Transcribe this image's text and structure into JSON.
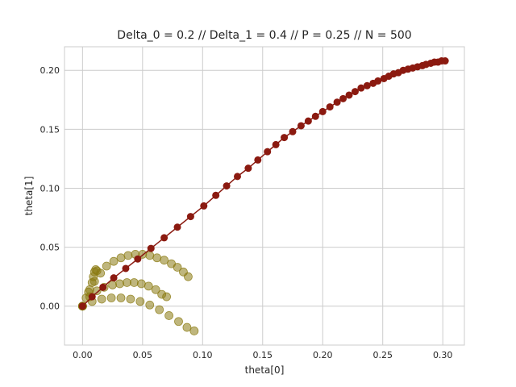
{
  "chart_data": {
    "type": "scatter",
    "title": "Delta_0 = 0.2 // Delta_1 = 0.4 // P = 0.25 // N = 500",
    "xlabel": "theta[0]",
    "ylabel": "theta[1]",
    "xlim": [
      -0.015,
      0.318
    ],
    "ylim": [
      -0.033,
      0.22
    ],
    "xticks": [
      "0.00",
      "0.05",
      "0.10",
      "0.15",
      "0.20",
      "0.25",
      "0.30"
    ],
    "xtick_values": [
      0.0,
      0.05,
      0.1,
      0.15,
      0.2,
      0.25,
      0.3
    ],
    "yticks": [
      "0.00",
      "0.05",
      "0.10",
      "0.15",
      "0.20"
    ],
    "ytick_values": [
      0.0,
      0.05,
      0.1,
      0.15,
      0.2
    ],
    "grid": true,
    "colors": {
      "main": "#8b1a10",
      "trajectories": "#8b7a12"
    },
    "series": [
      {
        "style": "line-markers",
        "color": "#8b1a10",
        "x": [
          0.0,
          0.008,
          0.017,
          0.026,
          0.036,
          0.046,
          0.057,
          0.068,
          0.079,
          0.09,
          0.101,
          0.111,
          0.12,
          0.129,
          0.138,
          0.146,
          0.154,
          0.161,
          0.168,
          0.175,
          0.182,
          0.188,
          0.194,
          0.2,
          0.206,
          0.212,
          0.217,
          0.222,
          0.227,
          0.232,
          0.237,
          0.242,
          0.246,
          0.251,
          0.255,
          0.259,
          0.263,
          0.267,
          0.271,
          0.275,
          0.279,
          0.283,
          0.286,
          0.29,
          0.293,
          0.296,
          0.299,
          0.302
        ],
        "y": [
          0.0,
          0.008,
          0.016,
          0.024,
          0.032,
          0.04,
          0.049,
          0.058,
          0.067,
          0.076,
          0.085,
          0.094,
          0.102,
          0.11,
          0.117,
          0.124,
          0.131,
          0.137,
          0.143,
          0.148,
          0.153,
          0.157,
          0.161,
          0.165,
          0.169,
          0.173,
          0.176,
          0.179,
          0.182,
          0.185,
          0.187,
          0.189,
          0.191,
          0.193,
          0.195,
          0.197,
          0.198,
          0.2,
          0.201,
          0.202,
          0.203,
          0.204,
          0.205,
          0.206,
          0.207,
          0.207,
          0.208,
          0.208
        ]
      },
      {
        "style": "markers",
        "color": "#8b7a12",
        "x": [
          0.0,
          0.005,
          0.01,
          0.015,
          0.02,
          0.026,
          0.032,
          0.038,
          0.044,
          0.05,
          0.056,
          0.062,
          0.068,
          0.074,
          0.079,
          0.084,
          0.088
        ],
        "y": [
          0.0,
          0.012,
          0.021,
          0.028,
          0.034,
          0.038,
          0.041,
          0.043,
          0.044,
          0.044,
          0.043,
          0.041,
          0.039,
          0.036,
          0.033,
          0.029,
          0.025
        ]
      },
      {
        "style": "markers",
        "color": "#8b7a12",
        "x": [
          0.0,
          0.006,
          0.012,
          0.018,
          0.025,
          0.031,
          0.037,
          0.043,
          0.049,
          0.055,
          0.061,
          0.066,
          0.07
        ],
        "y": [
          0.0,
          0.008,
          0.013,
          0.016,
          0.018,
          0.019,
          0.02,
          0.02,
          0.019,
          0.017,
          0.014,
          0.01,
          0.008
        ]
      },
      {
        "style": "markers",
        "color": "#8b7a12",
        "x": [
          0.0,
          0.008,
          0.016,
          0.024,
          0.032,
          0.04,
          0.048,
          0.056,
          0.064,
          0.072,
          0.08,
          0.087,
          0.093
        ],
        "y": [
          0.0,
          0.004,
          0.006,
          0.007,
          0.007,
          0.006,
          0.004,
          0.001,
          -0.003,
          -0.008,
          -0.013,
          -0.018,
          -0.021
        ]
      },
      {
        "style": "markers",
        "color": "#8b7a12",
        "x": [
          0.0,
          0.003,
          0.006,
          0.008,
          0.009,
          0.01,
          0.011,
          0.012
        ],
        "y": [
          0.0,
          0.007,
          0.014,
          0.02,
          0.025,
          0.029,
          0.031,
          0.03
        ]
      }
    ]
  }
}
